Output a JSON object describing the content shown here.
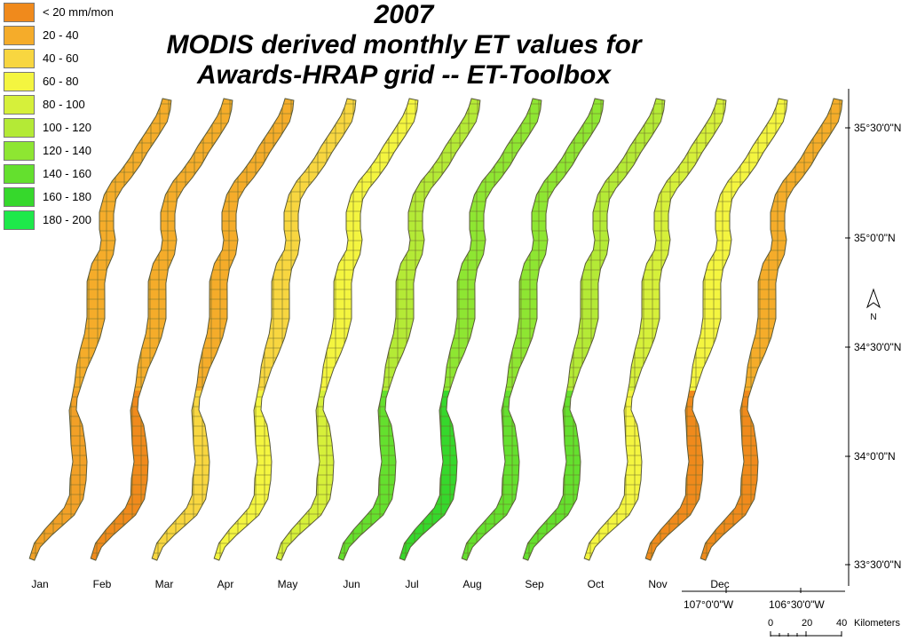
{
  "title": {
    "line1": "2007",
    "line2": "MODIS derived monthly ET values for",
    "line3": "Awards-HRAP grid -- ET-Toolbox"
  },
  "legend": [
    {
      "label": "< 20 mm/mon",
      "color": "#f08a1c"
    },
    {
      "label": "20 - 40",
      "color": "#f5ac2a"
    },
    {
      "label": "40 - 60",
      "color": "#f8d640"
    },
    {
      "label": "60 - 80",
      "color": "#f4f540"
    },
    {
      "label": "80 - 100",
      "color": "#d6f03a"
    },
    {
      "label": "100 - 120",
      "color": "#b4ea36"
    },
    {
      "label": "120 - 140",
      "color": "#8ee632"
    },
    {
      "label": "140 - 160",
      "color": "#64e02e"
    },
    {
      "label": "160 - 180",
      "color": "#36d82c"
    },
    {
      "label": "180 - 200",
      "color": "#1ee84a"
    }
  ],
  "months": [
    {
      "name": "Jan",
      "color": "#f5ac2a",
      "color2": "#f2a027"
    },
    {
      "name": "Feb",
      "color": "#f5ac2a",
      "color2": "#f08a1c"
    },
    {
      "name": "Mar",
      "color": "#f5ac2a",
      "color2": "#f8d640"
    },
    {
      "name": "Apr",
      "color": "#f8d640",
      "color2": "#f4f540"
    },
    {
      "name": "May",
      "color": "#f4f540",
      "color2": "#d6f03a"
    },
    {
      "name": "Jun",
      "color": "#b4ea36",
      "color2": "#64e02e"
    },
    {
      "name": "Jul",
      "color": "#8ee632",
      "color2": "#36d82c"
    },
    {
      "name": "Aug",
      "color": "#8ee632",
      "color2": "#64e02e"
    },
    {
      "name": "Sep",
      "color": "#b4ea36",
      "color2": "#64e02e"
    },
    {
      "name": "Oct",
      "color": "#d6f03a",
      "color2": "#f4f540"
    },
    {
      "name": "Nov",
      "color": "#f4f540",
      "color2": "#f08a1c"
    },
    {
      "name": "Dec",
      "color": "#f5ac2a",
      "color2": "#f08a1c"
    }
  ],
  "axes": {
    "latitudes": [
      "35°30'0\"N",
      "35°0'0\"N",
      "34°30'0\"N",
      "34°0'0\"N",
      "33°30'0\"N"
    ],
    "longitudes": [
      "107°0'0\"W",
      "106°30'0\"W"
    ]
  },
  "north_arrow": {
    "label": "N"
  },
  "scale_bar": {
    "ticks": [
      "0",
      "20",
      "40"
    ],
    "units": "Kilometers"
  }
}
